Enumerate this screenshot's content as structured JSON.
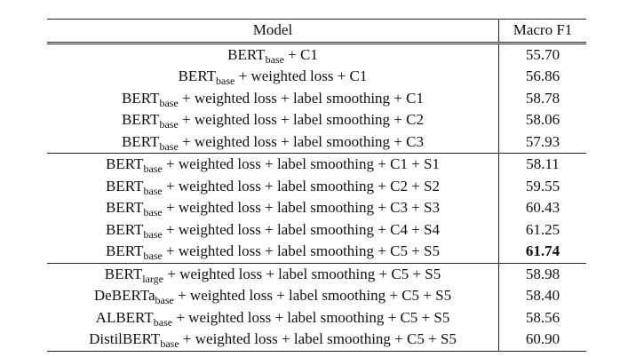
{
  "table": {
    "headers": {
      "model": "Model",
      "score": "Macro F1"
    },
    "groups": [
      {
        "rows": [
          {
            "base": "BERT",
            "sub": "base",
            "rest": " + C1",
            "score": "55.70"
          },
          {
            "base": "BERT",
            "sub": "base",
            "rest": " + weighted loss + C1",
            "score": "56.86"
          },
          {
            "base": "BERT",
            "sub": "base",
            "rest": " + weighted loss + label smoothing + C1",
            "score": "58.78"
          },
          {
            "base": "BERT",
            "sub": "base",
            "rest": " + weighted loss + label smoothing + C2",
            "score": "58.06"
          },
          {
            "base": "BERT",
            "sub": "base",
            "rest": " + weighted loss + label smoothing + C3",
            "score": "57.93"
          }
        ]
      },
      {
        "rows": [
          {
            "base": "BERT",
            "sub": "base",
            "rest": " + weighted loss + label smoothing + C1 + S1",
            "score": "58.11"
          },
          {
            "base": "BERT",
            "sub": "base",
            "rest": " + weighted loss + label smoothing + C2 + S2",
            "score": "59.55"
          },
          {
            "base": "BERT",
            "sub": "base",
            "rest": " + weighted loss + label smoothing + C3 + S3",
            "score": "60.43"
          },
          {
            "base": "BERT",
            "sub": "base",
            "rest": " + weighted loss + label smoothing + C4 + S4",
            "score": "61.25"
          },
          {
            "base": "BERT",
            "sub": "base",
            "rest": " + weighted loss + label smoothing + C5 + S5",
            "score": "61.74",
            "bold": true
          }
        ]
      },
      {
        "rows": [
          {
            "base": "BERT",
            "sub": "large",
            "rest": " + weighted loss + label smoothing + C5 + S5",
            "score": "58.98"
          },
          {
            "base": "DeBERTa",
            "sub": "base",
            "rest": " + weighted loss + label smoothing + C5 + S5",
            "score": "58.40"
          },
          {
            "base": "ALBERT",
            "sub": "base",
            "rest": " + weighted loss + label smoothing + C5 + S5",
            "score": "58.56"
          },
          {
            "base": "DistilBERT",
            "sub": "base",
            "rest": " + weighted loss + label smoothing + C5 + S5",
            "score": "60.90"
          }
        ]
      }
    ]
  }
}
